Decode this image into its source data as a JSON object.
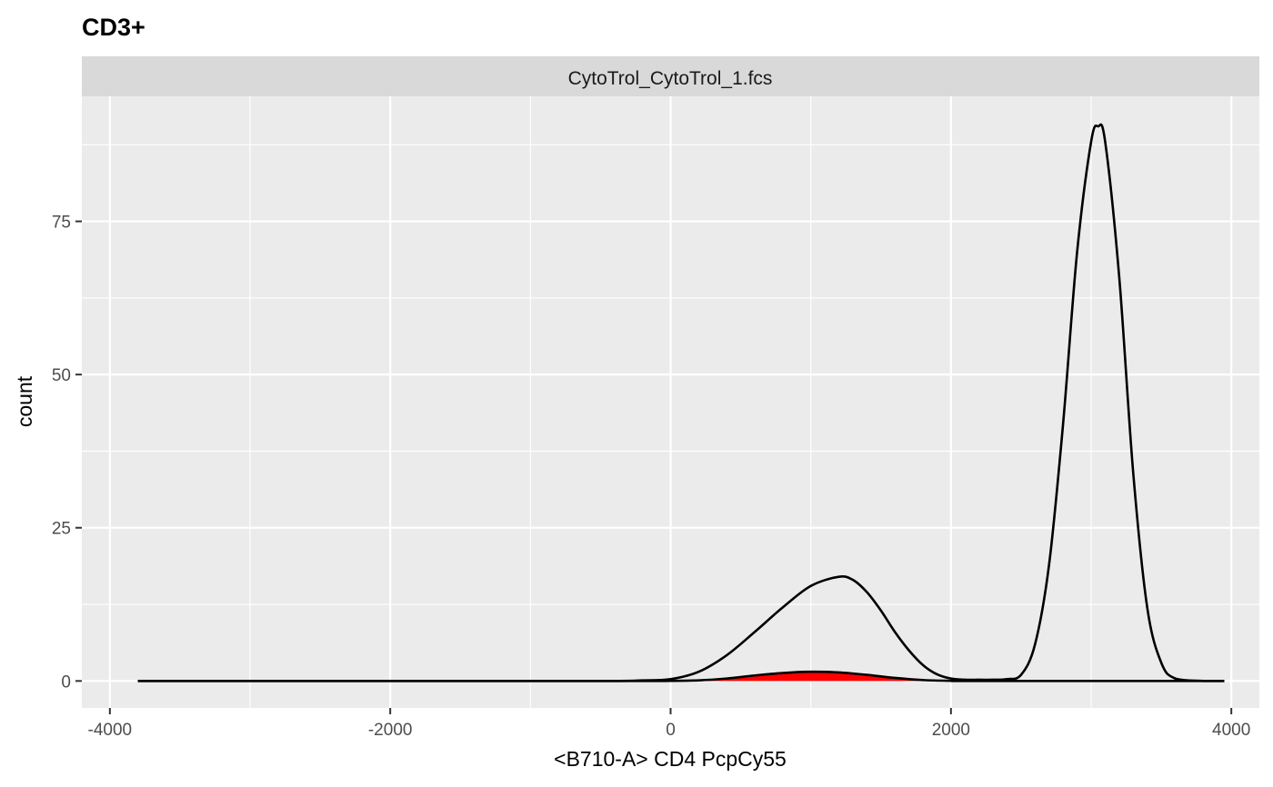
{
  "chart_data": {
    "type": "area",
    "title": "CD3+",
    "facet_label": "CytoTrol_CytoTrol_1.fcs",
    "xlabel": "<B710-A> CD4 PcpCy55",
    "ylabel": "count",
    "xlim": [
      -4200,
      4200
    ],
    "ylim": [
      -4.4,
      95.4
    ],
    "x_ticks": [
      -4000,
      -2000,
      0,
      2000,
      4000
    ],
    "y_ticks": [
      0,
      25,
      50,
      75
    ],
    "grid": true,
    "colors": {
      "panel_bg": "#ebebeb",
      "strip_bg": "#d9d9d9",
      "grid": "#ffffff",
      "outline": "#000000",
      "gated_fill": "#ff0000"
    },
    "series": [
      {
        "fill": "none",
        "x": [
          -3800,
          -2000,
          -500,
          -200,
          0,
          200,
          400,
          600,
          800,
          1000,
          1200,
          1300,
          1400,
          1500,
          1600,
          1700,
          1800,
          1900,
          2000,
          2100,
          2200,
          2300,
          2400,
          2500,
          2600,
          2700,
          2800,
          2900,
          3000,
          3050,
          3100,
          3200,
          3300,
          3400,
          3500,
          3600,
          3800,
          3950
        ],
        "y": [
          0,
          0,
          0,
          0.1,
          0.3,
          1.5,
          4.2,
          8.0,
          12.0,
          15.5,
          17.0,
          16.5,
          14.5,
          11.5,
          8.0,
          5.0,
          2.6,
          1.1,
          0.4,
          0.2,
          0.2,
          0.2,
          0.3,
          1.0,
          6.0,
          19.0,
          42.0,
          70.0,
          88.0,
          90.5,
          88.0,
          66.0,
          34.0,
          12.0,
          3.0,
          0.4,
          0,
          0
        ]
      },
      {
        "fill": "#ff0000",
        "x": [
          -3800,
          -500,
          0,
          200,
          400,
          600,
          800,
          1000,
          1200,
          1400,
          1600,
          1800,
          2000,
          2200,
          3950
        ],
        "y": [
          0,
          0,
          0.02,
          0.1,
          0.4,
          0.9,
          1.3,
          1.5,
          1.4,
          1.0,
          0.5,
          0.15,
          0.03,
          0,
          0
        ]
      }
    ]
  }
}
